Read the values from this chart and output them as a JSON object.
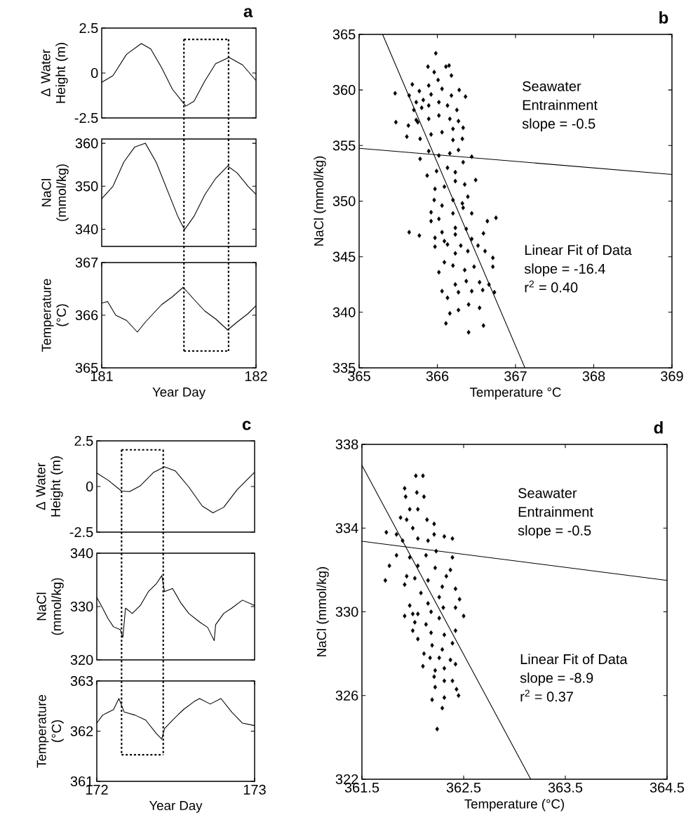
{
  "chart_data": [
    {
      "type": "line",
      "title": "a",
      "ylabel": "Δ Water Height (m)",
      "xlim": [
        181,
        182
      ],
      "ylim": [
        -2.5,
        2.5
      ],
      "yticks": [
        -2.5,
        0,
        2.5
      ],
      "tick_labels": "y",
      "ref_lines": [
        {
          "axis": "x",
          "value": 181.533,
          "line_style": "dotted"
        },
        {
          "axis": "x",
          "value": 181.822,
          "line_style": "dotted"
        }
      ],
      "series": [
        {
          "color": "#000000",
          "x": [
            181.0,
            181.073,
            181.161,
            181.257,
            181.318,
            181.388,
            181.458,
            181.545,
            181.598,
            181.668,
            181.738,
            181.825,
            181.913,
            182.0
          ],
          "values": [
            -0.52,
            -0.15,
            1.04,
            1.64,
            1.34,
            0.3,
            -0.9,
            -1.84,
            -1.57,
            -0.45,
            0.52,
            0.87,
            0.45,
            -0.42
          ]
        },
        {
          "type": "line",
          "line_style": "dotted",
          "color": "#000000",
          "x": [
            181.533,
            181.822
          ],
          "values": [
            1.87,
            1.87
          ]
        }
      ]
    },
    {
      "type": "line",
      "ylabel": "NaCl (mmol/kg)",
      "xlim": [
        181,
        182
      ],
      "ylim": [
        336,
        361
      ],
      "yticks": [
        340,
        350,
        360
      ],
      "tick_labels": "y",
      "ref_lines": [
        {
          "axis": "x",
          "value": 181.533,
          "line_style": "dotted"
        },
        {
          "axis": "x",
          "value": 181.822,
          "line_style": "dotted"
        }
      ],
      "series": [
        {
          "color": "#000000",
          "x": [
            181.0,
            181.073,
            181.143,
            181.213,
            181.283,
            181.353,
            181.423,
            181.493,
            181.537,
            181.598,
            181.668,
            181.738,
            181.816,
            181.878,
            181.948,
            182.0
          ],
          "values": [
            347.1,
            350.0,
            355.6,
            359.1,
            360.0,
            355.6,
            349.3,
            343.0,
            339.9,
            343.0,
            348.0,
            351.8,
            354.7,
            353.1,
            350.0,
            348.1
          ]
        }
      ]
    },
    {
      "type": "line",
      "xlabel": "Year Day",
      "ylabel": "Temperature (°C)",
      "xlim": [
        181,
        182
      ],
      "xticks": [
        181,
        182
      ],
      "ylim": [
        365,
        367
      ],
      "yticks": [
        365,
        366,
        367
      ],
      "ref_lines": [
        {
          "axis": "x",
          "value": 181.533,
          "line_style": "dotted"
        },
        {
          "axis": "x",
          "value": 181.822,
          "line_style": "dotted"
        }
      ],
      "series": [
        {
          "color": "#000000",
          "x": [
            181.0,
            181.038,
            181.091,
            181.161,
            181.231,
            181.283,
            181.388,
            181.458,
            181.528,
            181.598,
            181.668,
            181.738,
            181.816,
            181.878,
            181.948,
            182.0
          ],
          "values": [
            366.23,
            366.26,
            366.0,
            365.9,
            365.68,
            365.87,
            366.2,
            366.35,
            366.53,
            366.3,
            366.08,
            365.93,
            365.72,
            365.87,
            366.03,
            366.18
          ]
        },
        {
          "type": "line",
          "line_style": "dotted",
          "color": "#000000",
          "x": [
            181.533,
            181.822
          ],
          "values": [
            365.32,
            365.32
          ]
        }
      ]
    },
    {
      "type": "scatter",
      "title": "b",
      "xlabel": "Temperature °C",
      "ylabel": "NaCl (mmol/kg)",
      "xlim": [
        365,
        369
      ],
      "xticks": [
        365,
        366,
        367,
        368,
        369
      ],
      "ylim": [
        335,
        365
      ],
      "yticks": [
        335,
        340,
        345,
        350,
        355,
        360,
        365
      ],
      "annotations": [
        "Seawater",
        "Entrainment",
        "slope = -0.5",
        "Linear Fit of Data",
        "slope = -16.4",
        "r$^{2}$ = 0.40"
      ],
      "series": [
        {
          "type": "scatter",
          "marker": "diamond",
          "color": "#000000",
          "x": [
            365.98,
            365.88,
            366.11,
            366.15,
            366.18,
            365.46,
            365.68,
            365.77,
            365.89,
            366.01,
            366.28,
            366.36,
            365.64,
            365.73,
            365.82,
            365.92,
            366.06,
            366.18,
            365.7,
            365.8,
            365.89,
            366.02,
            366.13,
            366.25,
            365.47,
            365.63,
            365.75,
            365.89,
            366.02,
            366.16,
            366.27,
            366.33,
            365.61,
            365.78,
            365.92,
            366.06,
            366.2,
            366.32,
            365.78,
            365.89,
            366.02,
            366.16,
            366.27,
            365.87,
            365.99,
            366.13,
            366.23,
            366.33,
            366.49,
            365.97,
            366.09,
            366.23,
            366.35,
            365.96,
            366.06,
            366.2,
            366.32,
            366.39,
            365.92,
            366.02,
            366.2,
            366.33,
            366.44,
            365.64,
            365.77,
            365.92,
            366.06,
            366.23,
            366.37,
            366.59,
            366.64,
            366.75,
            365.97,
            366.09,
            366.23,
            366.44,
            365.97,
            366.13,
            366.3,
            366.52,
            366.09,
            366.23,
            366.39,
            366.61,
            366.71,
            366.02,
            366.2,
            366.35,
            366.47,
            366.71,
            366.06,
            366.23,
            366.37,
            366.54,
            366.66,
            366.73,
            366.13,
            366.27,
            366.44,
            366.58,
            366.16,
            366.27,
            366.4,
            366.54,
            366.11,
            366.4,
            366.59,
            365.73,
            365.96,
            366.2,
            366.44
          ],
          "values": [
            363.3,
            362.1,
            362.1,
            362.2,
            361.3,
            359.7,
            360.5,
            359.9,
            360.4,
            360.9,
            360.0,
            359.4,
            359.5,
            358.9,
            359.1,
            359.6,
            360.1,
            359.5,
            358.2,
            358.4,
            358.6,
            358.9,
            358.6,
            358.2,
            357.1,
            356.8,
            357.1,
            357.4,
            357.7,
            357.4,
            357.2,
            356.6,
            355.8,
            355.6,
            356.0,
            356.2,
            356.5,
            355.6,
            353.8,
            354.5,
            354.1,
            354.3,
            354.6,
            352.3,
            352.7,
            353.0,
            352.6,
            353.5,
            351.9,
            351.1,
            351.3,
            351.8,
            351.5,
            350.1,
            349.6,
            350.1,
            349.8,
            350.4,
            349.0,
            348.4,
            348.9,
            349.4,
            348.9,
            347.2,
            346.9,
            348.2,
            347.2,
            347.6,
            347.5,
            347.1,
            348.2,
            348.5,
            346.7,
            346.4,
            347.0,
            346.6,
            345.9,
            346.1,
            346.0,
            346.0,
            344.5,
            345.3,
            345.5,
            345.5,
            344.9,
            343.6,
            344.2,
            343.8,
            344.1,
            344.1,
            341.9,
            342.5,
            342.8,
            342.7,
            342.5,
            341.8,
            341.3,
            341.8,
            341.9,
            342.0,
            339.9,
            340.2,
            340.7,
            340.4,
            339.0,
            338.2,
            338.8,
            357.3,
            361.6,
            355.5,
            354.0
          ]
        },
        {
          "type": "line",
          "color": "#000000",
          "x": [
            365.0,
            369.0
          ],
          "values": [
            354.75,
            352.4
          ]
        },
        {
          "type": "line",
          "color": "#000000",
          "x": [
            365.3,
            367.12
          ],
          "values": [
            365,
            335
          ]
        }
      ]
    },
    {
      "type": "line",
      "title": "c",
      "ylabel": "Δ Water Height (m)",
      "xlim": [
        172,
        173
      ],
      "ylim": [
        -2.5,
        2.5
      ],
      "yticks": [
        -2.5,
        0,
        2.5
      ],
      "tick_labels": "y",
      "ref_lines": [
        {
          "axis": "x",
          "value": 172.157,
          "line_style": "dotted"
        },
        {
          "axis": "x",
          "value": 172.421,
          "line_style": "dotted"
        }
      ],
      "series": [
        {
          "color": "#000000",
          "x": [
            172.0,
            172.072,
            172.157,
            172.208,
            172.276,
            172.361,
            172.429,
            172.497,
            172.583,
            172.668,
            172.736,
            172.804,
            172.889,
            173.0
          ],
          "values": [
            0.74,
            0.34,
            -0.25,
            -0.28,
            0.04,
            0.78,
            1.08,
            0.86,
            -0.03,
            -1.07,
            -1.44,
            -1.14,
            -0.18,
            0.78
          ]
        },
        {
          "type": "line",
          "line_style": "dotted",
          "color": "#000000",
          "x": [
            172.157,
            172.421
          ],
          "values": [
            2.01,
            2.01
          ]
        }
      ]
    },
    {
      "type": "line",
      "ylabel": "NaCl (mmol/kg)",
      "xlim": [
        172,
        173
      ],
      "ylim": [
        320,
        340
      ],
      "yticks": [
        320,
        330,
        340
      ],
      "tick_labels": "y",
      "ref_lines": [
        {
          "axis": "x",
          "value": 172.157,
          "line_style": "dotted"
        },
        {
          "axis": "x",
          "value": 172.421,
          "line_style": "dotted"
        }
      ],
      "series": [
        {
          "color": "#000000",
          "x": [
            172.0,
            172.037,
            172.072,
            172.106,
            172.148,
            172.165,
            172.182,
            172.225,
            172.276,
            172.327,
            172.378,
            172.412,
            172.429,
            172.48,
            172.532,
            172.583,
            172.651,
            172.702,
            172.744,
            172.753,
            172.804,
            172.855,
            172.923,
            173.0
          ],
          "values": [
            331.7,
            329.7,
            327.7,
            326.2,
            325.7,
            324.2,
            329.7,
            328.7,
            330.2,
            332.8,
            334.3,
            335.8,
            332.8,
            333.4,
            330.7,
            328.7,
            327.1,
            326.1,
            323.6,
            326.6,
            328.7,
            329.7,
            331.2,
            330.2
          ]
        }
      ]
    },
    {
      "type": "line",
      "xlabel": "Year Day",
      "ylabel": "Temperature (°C)",
      "xlim": [
        172,
        173
      ],
      "xticks": [
        172,
        173
      ],
      "ylim": [
        361,
        363
      ],
      "yticks": [
        361,
        362,
        363
      ],
      "ref_lines": [
        {
          "axis": "x",
          "value": 172.157,
          "line_style": "dotted"
        },
        {
          "axis": "x",
          "value": 172.421,
          "line_style": "dotted"
        }
      ],
      "series": [
        {
          "color": "#000000",
          "x": [
            172.0,
            172.037,
            172.106,
            172.14,
            172.174,
            172.242,
            172.31,
            172.378,
            172.412,
            172.429,
            172.48,
            172.549,
            172.617,
            172.651,
            172.719,
            172.787,
            172.855,
            172.923,
            173.0
          ],
          "values": [
            362.16,
            362.32,
            362.43,
            362.65,
            362.38,
            362.32,
            362.22,
            361.95,
            361.84,
            362.05,
            362.22,
            362.43,
            362.59,
            362.65,
            362.54,
            362.65,
            362.38,
            362.16,
            362.11
          ]
        },
        {
          "type": "line",
          "line_style": "dotted",
          "color": "#000000",
          "x": [
            172.157,
            172.421
          ],
          "values": [
            361.53,
            361.53
          ]
        }
      ]
    },
    {
      "type": "scatter",
      "title": "d",
      "xlabel": "Temperature (°C)",
      "ylabel": "NaCl (mmol/kg)",
      "xlim": [
        361.5,
        364.5
      ],
      "xticks": [
        361.5,
        362.5,
        363.5,
        364.5
      ],
      "ylim": [
        322,
        338
      ],
      "yticks": [
        322,
        326,
        330,
        334,
        338
      ],
      "annotations": [
        "Seawater",
        "Entrainment",
        "slope = -0.5",
        "Linear Fit of Data",
        "slope = -8.9",
        "r$^{2}$ = 0.37"
      ],
      "series": [
        {
          "type": "scatter",
          "marker": "diamond",
          "color": "#000000",
          "x": [
            362.03,
            362.1,
            361.92,
            362.04,
            362.11,
            361.93,
            361.97,
            362.05,
            361.88,
            361.94,
            362.14,
            362.21,
            361.74,
            361.84,
            362.0,
            362.31,
            362.39,
            361.9,
            362.05,
            362.15,
            361.84,
            361.97,
            362.13,
            362.23,
            362.39,
            361.77,
            362.05,
            362.22,
            362.37,
            361.73,
            361.92,
            362.02,
            362.15,
            362.29,
            362.42,
            362.08,
            362.26,
            362.46,
            361.97,
            361.92,
            362.05,
            362.18,
            362.3,
            362.42,
            362.5,
            362.02,
            362.13,
            362.26,
            362.42,
            362.0,
            362.05,
            362.18,
            362.31,
            362.39,
            362.19,
            362.29,
            362.11,
            362.17,
            362.26,
            362.37,
            362.1,
            362.22,
            362.31,
            362.42,
            362.21,
            362.31,
            362.39,
            362.43,
            362.22,
            362.19,
            362.31,
            362.45,
            362.29,
            362.24,
            362.0,
            362.15,
            362.33,
            362.21,
            361.94
          ],
          "values": [
            336.5,
            336.5,
            335.9,
            335.7,
            335.5,
            335.5,
            334.9,
            334.9,
            334.5,
            334.4,
            334.4,
            334.2,
            333.8,
            333.7,
            334.0,
            333.6,
            333.5,
            333.4,
            333.5,
            333.4,
            332.7,
            332.6,
            332.7,
            332.9,
            332.6,
            332.2,
            332.2,
            332.1,
            332.0,
            331.5,
            331.3,
            331.6,
            331.5,
            331.2,
            331.1,
            330.9,
            330.7,
            330.6,
            330.3,
            329.8,
            329.9,
            330.0,
            330.2,
            330.2,
            329.8,
            329.5,
            329.4,
            329.7,
            329.1,
            329.1,
            328.7,
            329.0,
            328.9,
            328.5,
            328.4,
            328.2,
            328.0,
            327.8,
            327.8,
            327.7,
            327.4,
            327.2,
            327.3,
            327.5,
            326.9,
            326.7,
            326.7,
            326.3,
            326.4,
            325.8,
            325.9,
            326.0,
            325.4,
            324.4,
            329.9,
            330.4,
            331.7,
            333.7,
            331.7
          ]
        },
        {
          "type": "line",
          "color": "#000000",
          "x": [
            361.5,
            364.5
          ],
          "values": [
            333.37,
            331.5
          ]
        },
        {
          "type": "line",
          "color": "#000000",
          "x": [
            361.5,
            363.16
          ],
          "values": [
            337.0,
            322
          ]
        }
      ]
    }
  ]
}
